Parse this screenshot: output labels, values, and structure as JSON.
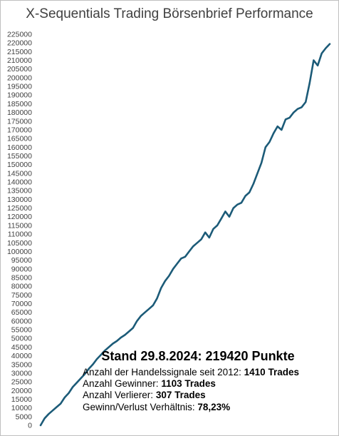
{
  "chart_data": {
    "type": "line",
    "title": "X-Sequentials Trading Börsenbrief Performance",
    "xlabel": "",
    "ylabel": "",
    "ylim": [
      0,
      225000
    ],
    "ytick_step": 5000,
    "grid": false,
    "legend": "none",
    "line_color": "#1c5b78",
    "series": [
      {
        "values": [
          0,
          4000,
          6500,
          8500,
          10500,
          12500,
          16000,
          18500,
          22000,
          24500,
          27000,
          29500,
          32500,
          35000,
          38000,
          40500,
          43000,
          45000,
          47000,
          48500,
          50500,
          52000,
          54000,
          56000,
          60000,
          63000,
          65000,
          67000,
          69000,
          73000,
          79000,
          83000,
          86000,
          90000,
          93000,
          96000,
          97000,
          100000,
          103000,
          105000,
          107000,
          111000,
          108000,
          113000,
          115000,
          119000,
          123000,
          120000,
          125000,
          127000,
          128000,
          132000,
          134000,
          139000,
          145000,
          151000,
          160000,
          163000,
          168000,
          172000,
          170000,
          176000,
          177000,
          180000,
          182000,
          183000,
          186000,
          197000,
          210000,
          207000,
          214000,
          217000,
          219420
        ]
      }
    ],
    "annotation": {
      "headline": "Stand 29.8.2024: 219420 Punkte",
      "lines": [
        {
          "label": "Anzahl der Handelssignale seit 2012:  ",
          "value": "1410 Trades"
        },
        {
          "label": "Anzahl Gewinner: ",
          "value": "1103 Trades"
        },
        {
          "label": "Anzahl Verlierer: ",
          "value": "307 Trades"
        },
        {
          "label": "Gewinn/Verlust Verhältnis: ",
          "value": "78,23%"
        }
      ]
    }
  }
}
